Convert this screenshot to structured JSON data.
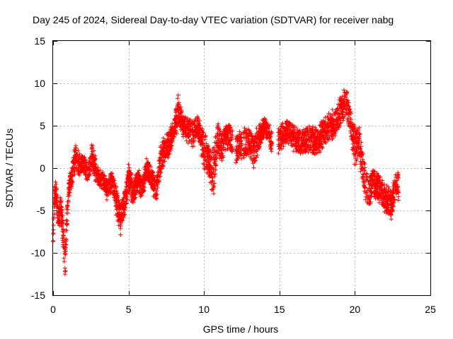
{
  "chart_data": {
    "type": "scatter",
    "title": "Day 245 of 2024, Sidereal Day-to-day VTEC variation (SDTVAR) for receiver nabg",
    "xlabel": "GPS time / hours",
    "ylabel": "SDTVAR / TECUs",
    "xlim": [
      0,
      25
    ],
    "ylim": [
      -15,
      15
    ],
    "xticks": [
      0,
      5,
      10,
      15,
      20,
      25
    ],
    "yticks": [
      -15,
      -10,
      -5,
      0,
      5,
      10,
      15
    ],
    "xtick_labels": [
      "0",
      "5",
      "10",
      "15",
      "20",
      "25"
    ],
    "ytick_labels": [
      "-15",
      "-10",
      "-5",
      "0",
      "5",
      "10",
      "15"
    ],
    "grid": true,
    "marker": "plus",
    "series_color": "#ff0000",
    "series": [
      {
        "name": "SDTVAR",
        "profile": [
          [
            0.0,
            -8.5,
            1.0
          ],
          [
            0.1,
            -3.0,
            2.0
          ],
          [
            0.2,
            -2.5,
            2.5
          ],
          [
            0.3,
            -5.5,
            2.0
          ],
          [
            0.4,
            -6.0,
            2.5
          ],
          [
            0.5,
            -4.0,
            2.0
          ],
          [
            0.6,
            -6.5,
            3.0
          ],
          [
            0.7,
            -9.0,
            4.0
          ],
          [
            0.8,
            -11.5,
            4.0
          ],
          [
            0.9,
            -6.0,
            4.0
          ],
          [
            1.0,
            -3.5,
            2.5
          ],
          [
            1.1,
            -2.0,
            2.0
          ],
          [
            1.3,
            -0.5,
            2.5
          ],
          [
            1.5,
            1.5,
            3.0
          ],
          [
            1.7,
            0.5,
            2.5
          ],
          [
            2.0,
            0.5,
            2.0
          ],
          [
            2.3,
            -0.5,
            2.0
          ],
          [
            2.6,
            1.5,
            3.0
          ],
          [
            2.8,
            0.0,
            2.5
          ],
          [
            3.0,
            -1.0,
            2.0
          ],
          [
            3.3,
            -1.5,
            2.0
          ],
          [
            3.6,
            -2.5,
            2.0
          ],
          [
            3.9,
            -1.5,
            2.0
          ],
          [
            4.2,
            -4.0,
            3.0
          ],
          [
            4.5,
            -6.0,
            3.0
          ],
          [
            4.8,
            -3.5,
            3.0
          ],
          [
            5.0,
            -1.0,
            3.0
          ],
          [
            5.3,
            -3.0,
            2.5
          ],
          [
            5.6,
            -1.5,
            2.5
          ],
          [
            5.9,
            -2.5,
            2.0
          ],
          [
            6.2,
            0.0,
            2.0
          ],
          [
            6.5,
            -1.0,
            2.0
          ],
          [
            6.8,
            -3.0,
            2.5
          ],
          [
            7.1,
            0.5,
            3.0
          ],
          [
            7.4,
            2.5,
            3.0
          ],
          [
            7.7,
            3.0,
            3.0
          ],
          [
            8.0,
            4.5,
            2.0
          ],
          [
            8.3,
            7.0,
            3.5
          ],
          [
            8.6,
            5.0,
            2.5
          ],
          [
            9.0,
            4.5,
            2.5
          ],
          [
            9.3,
            4.0,
            2.5
          ],
          [
            9.6,
            5.0,
            2.5
          ],
          [
            10.0,
            2.0,
            4.0
          ],
          [
            10.3,
            1.0,
            3.0
          ],
          [
            10.6,
            -0.5,
            5.0
          ],
          [
            10.9,
            3.5,
            4.0
          ],
          [
            11.2,
            2.5,
            3.0
          ],
          [
            11.5,
            4.0,
            3.0
          ],
          [
            11.8,
            3.5,
            3.0
          ],
          [
            12.0,
            2.0,
            3.0
          ],
          [
            12.5,
            3.0,
            3.0
          ],
          [
            13.0,
            3.0,
            3.0
          ],
          [
            13.3,
            2.0,
            3.5
          ],
          [
            13.6,
            3.5,
            2.5
          ],
          [
            14.0,
            5.0,
            2.0
          ],
          [
            14.3,
            4.0,
            2.0
          ],
          [
            14.6,
            2.5,
            2.5
          ],
          [
            15.0,
            3.5,
            2.5
          ],
          [
            15.5,
            4.5,
            2.5
          ],
          [
            16.0,
            3.5,
            2.5
          ],
          [
            16.5,
            3.0,
            2.5
          ],
          [
            17.0,
            3.5,
            3.0
          ],
          [
            17.5,
            3.0,
            3.0
          ],
          [
            18.0,
            4.5,
            3.0
          ],
          [
            18.5,
            5.0,
            3.0
          ],
          [
            19.0,
            6.5,
            3.0
          ],
          [
            19.4,
            8.0,
            3.0
          ],
          [
            19.7,
            5.5,
            3.0
          ],
          [
            20.0,
            3.0,
            4.0
          ],
          [
            20.3,
            2.5,
            4.0
          ],
          [
            20.6,
            -1.0,
            4.0
          ],
          [
            20.9,
            -3.0,
            3.5
          ],
          [
            21.2,
            -2.0,
            3.0
          ],
          [
            21.5,
            -2.0,
            3.0
          ],
          [
            21.8,
            -3.0,
            3.0
          ],
          [
            22.1,
            -4.0,
            3.0
          ],
          [
            22.4,
            -4.5,
            3.0
          ],
          [
            22.7,
            -2.5,
            3.0
          ],
          [
            22.9,
            -2.0,
            3.0
          ]
        ],
        "gaps": [
          [
            11.9,
            12.1
          ],
          [
            12.5,
            12.6
          ],
          [
            14.5,
            14.9
          ]
        ],
        "points_per_hour": 170,
        "seed": 245
      }
    ]
  }
}
